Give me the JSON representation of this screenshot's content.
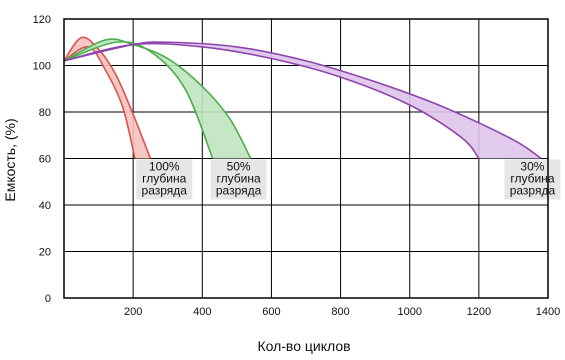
{
  "chart_data": {
    "type": "area",
    "xlabel": "Кол-во циклов",
    "ylabel": "Емкость, (%)",
    "xlim": [
      0,
      1400
    ],
    "ylim": [
      0,
      120
    ],
    "x_ticks": [
      200,
      400,
      600,
      800,
      1000,
      1200,
      1400
    ],
    "y_ticks": [
      0,
      20,
      40,
      60,
      80,
      100,
      120
    ],
    "grid": true,
    "series": [
      {
        "color": "#d9534f",
        "fill": "#f5c2bd",
        "upper": {
          "x": [
            0,
            50,
            100,
            150,
            200,
            250
          ],
          "y": [
            102,
            112,
            107,
            96,
            79,
            60
          ]
        },
        "lower": {
          "x": [
            0,
            70,
            120,
            170,
            205
          ],
          "y": [
            102,
            108,
            98,
            82,
            60
          ]
        },
        "annotation": {
          "x": 290,
          "lines": [
            "100%",
            "глубина",
            "разряда"
          ]
        }
      },
      {
        "color": "#4cae4c",
        "fill": "#bfe4bf",
        "upper": {
          "x": [
            0,
            120,
            200,
            300,
            400,
            480,
            540
          ],
          "y": [
            102,
            111,
            109,
            103,
            91,
            77,
            60
          ]
        },
        "lower": {
          "x": [
            0,
            150,
            250,
            350,
            430
          ],
          "y": [
            102,
            110,
            106,
            90,
            60
          ]
        },
        "annotation": {
          "x": 505,
          "lines": [
            "50%",
            "глубина",
            "разряда"
          ]
        }
      },
      {
        "color": "#8e44ad",
        "fill": "#ddc5ea",
        "upper": {
          "x": [
            0,
            200,
            300,
            500,
            700,
            900,
            1100,
            1300,
            1380
          ],
          "y": [
            102,
            109,
            110,
            108,
            102,
            93,
            82,
            68,
            60
          ]
        },
        "lower": {
          "x": [
            0,
            200,
            400,
            600,
            800,
            1000,
            1150,
            1200
          ],
          "y": [
            102,
            109,
            108,
            103,
            95,
            83,
            69,
            60
          ]
        },
        "annotation": {
          "x": 1355,
          "lines": [
            "30%",
            "глубина",
            "разряда"
          ]
        }
      }
    ]
  }
}
